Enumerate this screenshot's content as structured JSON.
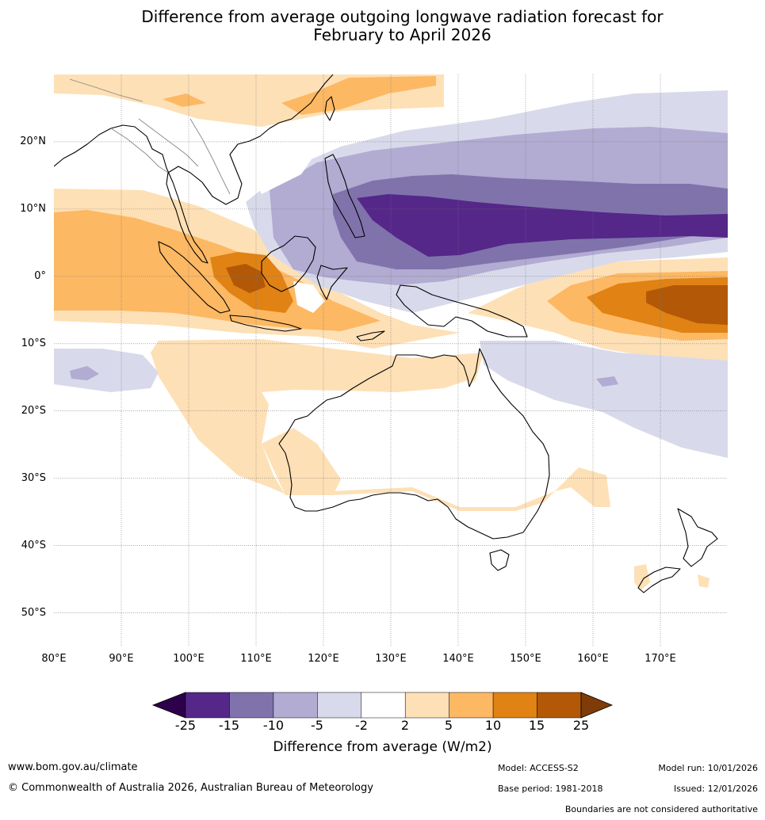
{
  "title": {
    "line1": "Difference from average outgoing longwave radiation forecast for",
    "line2": "February to April 2026"
  },
  "map": {
    "lat_labels": [
      "20°N",
      "10°N",
      "0°",
      "10°S",
      "20°S",
      "30°S",
      "40°S",
      "50°S"
    ],
    "lon_labels": [
      "80°E",
      "90°E",
      "100°E",
      "110°E",
      "120°E",
      "130°E",
      "140°E",
      "150°E",
      "160°E",
      "170°E"
    ],
    "lon_range": [
      80,
      180
    ],
    "lat_range": [
      -55,
      30
    ]
  },
  "colorbar": {
    "title": "Difference from average (W/m2)",
    "ticks": [
      "-25",
      "-15",
      "-10",
      "-5",
      "-2",
      "2",
      "5",
      "10",
      "15",
      "25"
    ],
    "colors": {
      "lt_neg25": "#2d004b",
      "neg25_neg15": "#542788",
      "neg15_neg10": "#8073ac",
      "neg10_neg5": "#b2abd2",
      "neg5_neg2": "#d8daeb",
      "neg2_2": "#ffffff",
      "p2_5": "#fee0b6",
      "p5_10": "#fdb863",
      "p10_15": "#e08214",
      "p15_25": "#b35806",
      "gt_25": "#7f3b08"
    }
  },
  "footer": {
    "website": "www.bom.gov.au/climate",
    "copyright": "© Commonwealth of Australia 2026, Australian Bureau of Meteorology",
    "model": "Model: ACCESS-S2",
    "base_period": "Base period: 1981-2018",
    "model_run": "Model run: 10/01/2026",
    "issued": "Issued: 12/01/2026",
    "disclaimer": "Boundaries are not considered authoritative"
  }
}
